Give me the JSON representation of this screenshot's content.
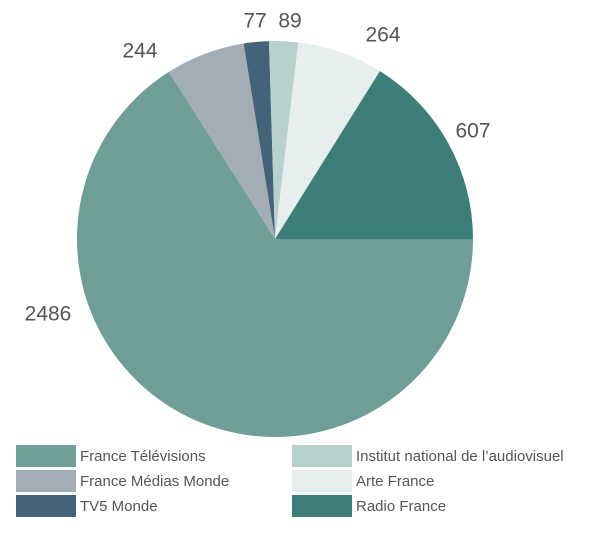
{
  "chart_data": {
    "type": "pie",
    "categories": [
      "France Télévisions",
      "France Médias Monde",
      "TV5 Monde",
      "Institut national de l’audiovisuel",
      "Arte France",
      "Radio France"
    ],
    "values": [
      2486,
      244,
      77,
      89,
      264,
      607
    ],
    "colors": [
      "#6f9e98",
      "#a3adb5",
      "#456378",
      "#b8d1cd",
      "#e6efee",
      "#3e7e78"
    ]
  }
}
